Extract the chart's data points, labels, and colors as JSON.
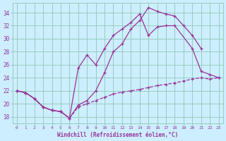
{
  "bg_color": "#cceeff",
  "grid_color": "#99ccbb",
  "line_color": "#993399",
  "xlabel": "Windchill (Refroidissement éolien,°C)",
  "xlim": [
    -0.5,
    23.5
  ],
  "ylim": [
    17.0,
    35.5
  ],
  "xticks": [
    0,
    1,
    2,
    3,
    4,
    5,
    6,
    7,
    8,
    9,
    10,
    11,
    12,
    13,
    14,
    15,
    16,
    17,
    18,
    19,
    20,
    21,
    22,
    23
  ],
  "yticks": [
    18,
    20,
    22,
    24,
    26,
    28,
    30,
    32,
    34
  ],
  "series1_x": [
    0,
    1,
    2,
    3,
    4,
    5,
    6,
    7,
    8,
    9,
    10,
    11,
    12,
    13,
    14,
    15,
    16,
    17,
    18,
    19,
    20,
    21
  ],
  "series1_y": [
    22.0,
    21.7,
    20.8,
    19.5,
    19.0,
    18.8,
    17.8,
    19.8,
    20.5,
    22.0,
    24.8,
    28.0,
    29.2,
    31.5,
    32.8,
    34.8,
    34.2,
    33.8,
    33.5,
    32.0,
    30.5,
    28.5
  ],
  "series2_x": [
    0,
    1,
    2,
    3,
    4,
    5,
    6,
    7,
    8,
    9,
    10,
    11,
    12,
    13,
    14,
    15,
    16,
    17,
    18,
    20,
    21,
    22,
    23
  ],
  "series2_y": [
    22.0,
    21.7,
    20.8,
    19.5,
    19.0,
    18.8,
    17.8,
    25.5,
    27.5,
    26.0,
    28.5,
    30.5,
    31.5,
    32.5,
    33.8,
    30.5,
    31.8,
    32.0,
    32.0,
    28.5,
    25.0,
    24.5,
    24.0
  ],
  "series3_x": [
    0,
    1,
    2,
    3,
    4,
    5,
    6,
    7,
    8,
    9,
    10,
    11,
    12,
    13,
    14,
    15,
    16,
    17,
    18,
    19,
    20,
    21,
    22,
    23
  ],
  "series3_y": [
    22.0,
    21.7,
    20.8,
    19.5,
    19.0,
    18.8,
    17.8,
    19.5,
    20.0,
    20.5,
    21.0,
    21.5,
    21.8,
    22.0,
    22.2,
    22.5,
    22.8,
    23.0,
    23.2,
    23.5,
    23.8,
    24.0,
    23.8,
    24.0
  ]
}
